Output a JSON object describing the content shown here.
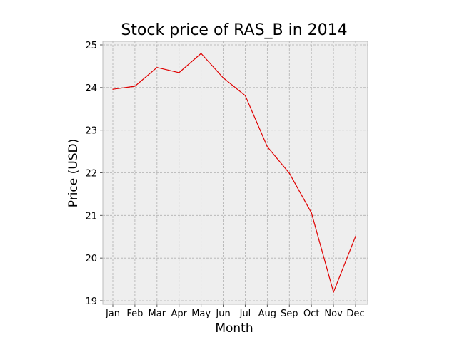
{
  "chart_data": {
    "type": "line",
    "title": "Stock price of RAS_B in 2014",
    "xlabel": "Month",
    "ylabel": "Price (USD)",
    "categories": [
      "Jan",
      "Feb",
      "Mar",
      "Apr",
      "May",
      "Jun",
      "Jul",
      "Aug",
      "Sep",
      "Oct",
      "Nov",
      "Dec"
    ],
    "series": [
      {
        "values": [
          23.96,
          24.03,
          24.47,
          24.35,
          24.8,
          24.23,
          23.81,
          22.61,
          21.99,
          21.06,
          19.2,
          20.51
        ],
        "color": "#e00000"
      }
    ],
    "ylim": [
      19,
      25
    ],
    "yticks": [
      "19",
      "20",
      "21",
      "22",
      "23",
      "24",
      "25"
    ],
    "grid": true,
    "plot_background": "#eeeeee"
  }
}
